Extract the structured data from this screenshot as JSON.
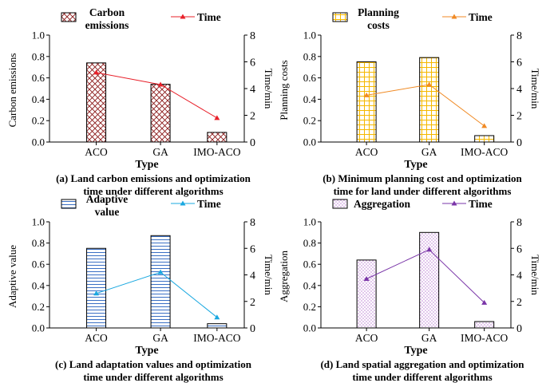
{
  "chart_data": [
    {
      "type": "bar",
      "caption": [
        "(a) Land carbon emissions and optimization",
        "time under different algorithms"
      ],
      "categories": [
        "ACO",
        "GA",
        "IMO-ACO"
      ],
      "xlabel": "Type",
      "ylabel": "Carbon emissions",
      "y2label": "Time/min",
      "ylim": [
        0,
        1.0
      ],
      "y2lim": [
        0,
        8
      ],
      "yticks": [
        "0.0",
        "0.2",
        "0.4",
        "0.6",
        "0.8",
        "1.0"
      ],
      "y2ticks": [
        "0",
        "2",
        "4",
        "6",
        "8"
      ],
      "series": [
        {
          "name": "Carbon emissions",
          "kind": "bar",
          "axis": "left",
          "values": [
            0.74,
            0.54,
            0.09
          ],
          "pattern": "crosshatch",
          "color": "#8b1a1a"
        },
        {
          "name": "Time",
          "kind": "line",
          "axis": "right",
          "values": [
            5.2,
            4.3,
            1.8
          ],
          "color": "#e8202a",
          "marker": "triangle"
        }
      ],
      "legend": [
        [
          "Carbon",
          "emissions"
        ],
        [
          "Time"
        ]
      ]
    },
    {
      "type": "bar",
      "caption": [
        "(b) Minimum planning cost and optimization",
        "time for land under different algorithms"
      ],
      "categories": [
        "ACO",
        "GA",
        "IMO-ACO"
      ],
      "xlabel": "Type",
      "ylabel": "Planning costs",
      "y2label": "Time/min",
      "ylim": [
        0,
        1.0
      ],
      "y2lim": [
        0,
        8
      ],
      "yticks": [
        "0.0",
        "0.2",
        "0.4",
        "0.6",
        "0.8",
        "1.0"
      ],
      "y2ticks": [
        "0",
        "2",
        "4",
        "6",
        "8"
      ],
      "series": [
        {
          "name": "Planning costs",
          "kind": "bar",
          "axis": "left",
          "values": [
            0.75,
            0.79,
            0.06
          ],
          "pattern": "grid",
          "color": "#f5b800"
        },
        {
          "name": "Time",
          "kind": "line",
          "axis": "right",
          "values": [
            3.5,
            4.3,
            1.2
          ],
          "color": "#f08a24",
          "marker": "triangle"
        }
      ],
      "legend": [
        [
          "Planning",
          "costs"
        ],
        [
          "Time"
        ]
      ]
    },
    {
      "type": "bar",
      "caption": [
        "(c) Land adaptation values and optimization",
        "time under different algorithms"
      ],
      "categories": [
        "ACO",
        "GA",
        "IMO-ACO"
      ],
      "xlabel": "Type",
      "ylabel": "Adaptive value",
      "y2label": "Time/min",
      "ylim": [
        0,
        1.0
      ],
      "y2lim": [
        0,
        8
      ],
      "yticks": [
        "0.0",
        "0.2",
        "0.4",
        "0.6",
        "0.8",
        "1.0"
      ],
      "y2ticks": [
        "0",
        "2",
        "4",
        "6",
        "8"
      ],
      "series": [
        {
          "name": "Adaptive value",
          "kind": "bar",
          "axis": "left",
          "values": [
            0.75,
            0.87,
            0.04
          ],
          "pattern": "hlines",
          "color": "#3a6fc4"
        },
        {
          "name": "Time",
          "kind": "line",
          "axis": "right",
          "values": [
            2.6,
            4.2,
            0.8
          ],
          "color": "#1aa8e0",
          "marker": "triangle"
        }
      ],
      "legend": [
        [
          "Adaptive",
          "value"
        ],
        [
          "Time"
        ]
      ]
    },
    {
      "type": "bar",
      "caption": [
        "(d) Land spatial aggregation and optimization",
        "time under different algorithms"
      ],
      "categories": [
        "ACO",
        "GA",
        "IMO-ACO"
      ],
      "xlabel": "Type",
      "ylabel": "Aggregation",
      "y2label": "Time/min",
      "ylim": [
        0,
        1.0
      ],
      "y2lim": [
        0,
        8
      ],
      "yticks": [
        "0.0",
        "0.2",
        "0.4",
        "0.6",
        "0.8",
        "1.0"
      ],
      "y2ticks": [
        "0",
        "2",
        "4",
        "6",
        "8"
      ],
      "series": [
        {
          "name": "Aggregation",
          "kind": "bar",
          "axis": "left",
          "values": [
            0.64,
            0.9,
            0.06
          ],
          "pattern": "dots",
          "color": "#9b3fbf"
        },
        {
          "name": "Time",
          "kind": "line",
          "axis": "right",
          "values": [
            3.7,
            5.9,
            1.9
          ],
          "color": "#7a35a8",
          "marker": "triangle"
        }
      ],
      "legend": [
        [
          "Aggregation"
        ],
        [
          "Time"
        ]
      ]
    }
  ]
}
